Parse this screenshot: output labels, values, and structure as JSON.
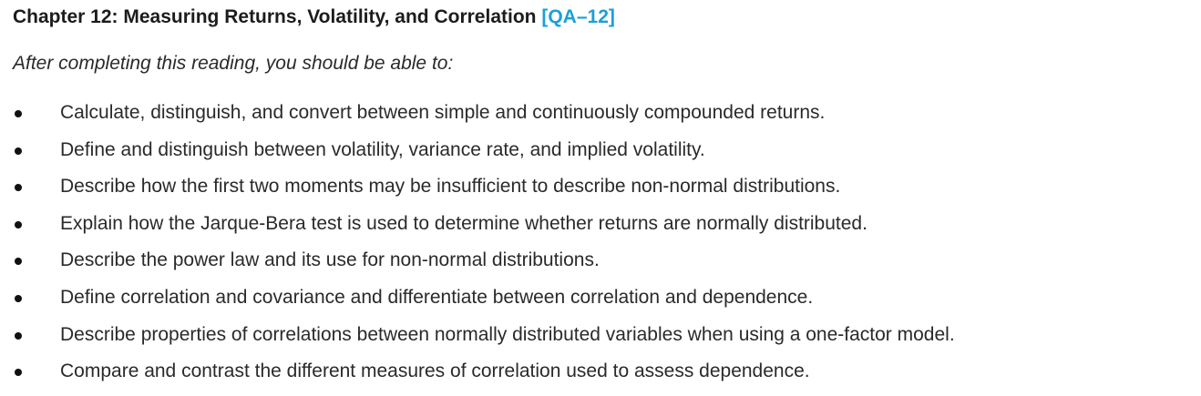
{
  "chapter": {
    "title": "Chapter 12: Measuring Returns, Volatility, and Correlation",
    "code": "[QA–12]",
    "code_color": "#1aa0d8"
  },
  "intro": "After completing this reading, you should be able to:",
  "objectives": [
    "Calculate, distinguish, and convert between simple and continuously compounded returns.",
    "Define and distinguish between volatility, variance rate, and implied volatility.",
    "Describe how the first two moments may be insufficient to describe non-normal distributions.",
    "Explain how the Jarque-Bera test is used to determine whether returns are normally distributed.",
    "Describe the power law and its use for non-normal distributions.",
    "Define correlation and covariance and differentiate between correlation and dependence.",
    "Describe properties of correlations between normally distributed variables when using a one-factor model.",
    "Compare and contrast the different measures of correlation used to assess dependence."
  ]
}
